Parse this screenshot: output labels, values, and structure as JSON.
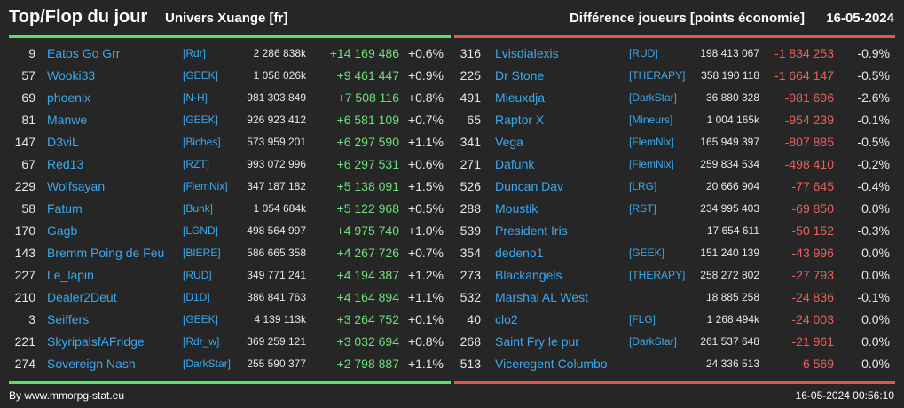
{
  "header": {
    "title": "Top/Flop du jour",
    "universe": "Univers Xuange [fr]",
    "subtitle": "Différence joueurs [points économie]",
    "date": "16-05-2024"
  },
  "colors": {
    "background": "#262626",
    "top_bar": "#55e36a",
    "flop_bar": "#e0574e",
    "name": "#3aa9ec",
    "positive": "#6ee07a",
    "negative": "#e8625a"
  },
  "top": [
    {
      "rank": "9",
      "name": "Eatos Go Grr",
      "alliance": "[Rdr]",
      "points": "2 286 838k",
      "diff": "+14 169 486",
      "pct": "+0.6%"
    },
    {
      "rank": "57",
      "name": "Wooki33",
      "alliance": "[GEEK]",
      "points": "1 058 026k",
      "diff": "+9 461 447",
      "pct": "+0.9%"
    },
    {
      "rank": "69",
      "name": "phoenix",
      "alliance": "[N-H]",
      "points": "981 303 849",
      "diff": "+7 508 116",
      "pct": "+0.8%"
    },
    {
      "rank": "81",
      "name": "Manwe",
      "alliance": "[GEEK]",
      "points": "926 923 412",
      "diff": "+6 581 109",
      "pct": "+0.7%"
    },
    {
      "rank": "147",
      "name": "D3viL",
      "alliance": "[Biches]",
      "points": "573 959 201",
      "diff": "+6 297 590",
      "pct": "+1.1%"
    },
    {
      "rank": "67",
      "name": "Red13",
      "alliance": "[RZT]",
      "points": "993 072 996",
      "diff": "+6 297 531",
      "pct": "+0.6%"
    },
    {
      "rank": "229",
      "name": "Wolfsayan",
      "alliance": "[FlemNix]",
      "points": "347 187 182",
      "diff": "+5 138 091",
      "pct": "+1.5%"
    },
    {
      "rank": "58",
      "name": "Fatum",
      "alliance": "[Bunk]",
      "points": "1 054 684k",
      "diff": "+5 122 968",
      "pct": "+0.5%"
    },
    {
      "rank": "170",
      "name": "Gagb",
      "alliance": "[LGND]",
      "points": "498 564 997",
      "diff": "+4 975 740",
      "pct": "+1.0%"
    },
    {
      "rank": "143",
      "name": "Bremm Poing de Feu",
      "alliance": "[BIERE]",
      "points": "586 665 358",
      "diff": "+4 267 726",
      "pct": "+0.7%"
    },
    {
      "rank": "227",
      "name": "Le_lapin",
      "alliance": "[RUD]",
      "points": "349 771 241",
      "diff": "+4 194 387",
      "pct": "+1.2%"
    },
    {
      "rank": "210",
      "name": "Dealer2Deut",
      "alliance": "[D1D]",
      "points": "386 841 763",
      "diff": "+4 164 894",
      "pct": "+1.1%"
    },
    {
      "rank": "3",
      "name": "Seiffers",
      "alliance": "[GEEK]",
      "points": "4 139 113k",
      "diff": "+3 264 752",
      "pct": "+0.1%"
    },
    {
      "rank": "221",
      "name": "SkyripalsfAFridge",
      "alliance": "[Rdr_w]",
      "points": "369 259 121",
      "diff": "+3 032 694",
      "pct": "+0.8%"
    },
    {
      "rank": "274",
      "name": "Sovereign Nash",
      "alliance": "[DarkStar]",
      "points": "255 590 377",
      "diff": "+2 798 887",
      "pct": "+1.1%"
    }
  ],
  "flop": [
    {
      "rank": "316",
      "name": "Lvisdialexis",
      "alliance": "[RUD]",
      "points": "198 413 067",
      "diff": "-1 834 253",
      "pct": "-0.9%"
    },
    {
      "rank": "225",
      "name": "Dr Stone",
      "alliance": "[THERAPY]",
      "points": "358 190 118",
      "diff": "-1 664 147",
      "pct": "-0.5%"
    },
    {
      "rank": "491",
      "name": "Mieuxdja",
      "alliance": "[DarkStar]",
      "points": "36 880 328",
      "diff": "-981 696",
      "pct": "-2.6%"
    },
    {
      "rank": "65",
      "name": "Raptor X",
      "alliance": "[Mineurs]",
      "points": "1 004 165k",
      "diff": "-954 239",
      "pct": "-0.1%"
    },
    {
      "rank": "341",
      "name": "Vega",
      "alliance": "[FlemNix]",
      "points": "165 949 397",
      "diff": "-807 885",
      "pct": "-0.5%"
    },
    {
      "rank": "271",
      "name": "Dafunk",
      "alliance": "[FlemNix]",
      "points": "259 834 534",
      "diff": "-498 410",
      "pct": "-0.2%"
    },
    {
      "rank": "526",
      "name": "Duncan Dav",
      "alliance": "[LRG]",
      "points": "20 666 904",
      "diff": "-77 645",
      "pct": "-0.4%"
    },
    {
      "rank": "288",
      "name": "Moustik",
      "alliance": "[RST]",
      "points": "234 995 403",
      "diff": "-69 850",
      "pct": "0.0%"
    },
    {
      "rank": "539",
      "name": "President Iris",
      "alliance": "",
      "points": "17 654 611",
      "diff": "-50 152",
      "pct": "-0.3%"
    },
    {
      "rank": "354",
      "name": "dedeno1",
      "alliance": "[GEEK]",
      "points": "151 240 139",
      "diff": "-43 996",
      "pct": "0.0%"
    },
    {
      "rank": "273",
      "name": "Blackangels",
      "alliance": "[THERAPY]",
      "points": "258 272 802",
      "diff": "-27 793",
      "pct": "0.0%"
    },
    {
      "rank": "532",
      "name": "Marshal AL West",
      "alliance": "",
      "points": "18 885 258",
      "diff": "-24 836",
      "pct": "-0.1%"
    },
    {
      "rank": "40",
      "name": "clo2",
      "alliance": "[FLG]",
      "points": "1 268 494k",
      "diff": "-24 003",
      "pct": "0.0%"
    },
    {
      "rank": "268",
      "name": "Saint Fry le pur",
      "alliance": "[DarkStar]",
      "points": "261 537 648",
      "diff": "-21 961",
      "pct": "0.0%"
    },
    {
      "rank": "513",
      "name": "Viceregent Columbo",
      "alliance": "",
      "points": "24 336 513",
      "diff": "-6 569",
      "pct": "0.0%"
    }
  ],
  "footer": {
    "source": "By www.mmorpg-stat.eu",
    "timestamp": "16-05-2024 00:56:10"
  }
}
